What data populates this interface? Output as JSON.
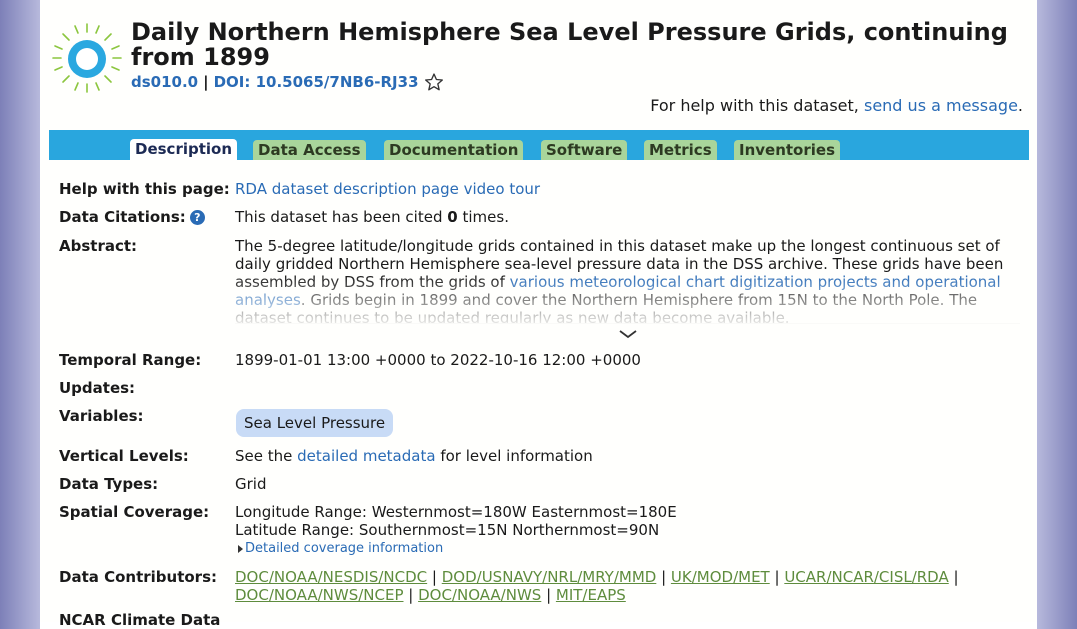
{
  "header": {
    "title": "Daily Northern Hemisphere Sea Level Pressure Grids, continuing from 1899",
    "dataset_id": "ds010.0",
    "separator": "|",
    "doi": "DOI: 10.5065/7NB6-RJ33",
    "help_prefix": "For help with this dataset,",
    "help_link": "send us a message",
    "help_suffix": "."
  },
  "tabs": [
    {
      "label": "Description",
      "active": true
    },
    {
      "label": "Data Access"
    },
    {
      "label": "Documentation"
    },
    {
      "label": "Software"
    },
    {
      "label": "Metrics"
    },
    {
      "label": "Inventories"
    }
  ],
  "details": {
    "help_page_label": "Help with this page:",
    "help_page_link": "RDA dataset description page video tour",
    "citations_label": "Data Citations:",
    "citations_prefix": "This dataset has been cited",
    "citations_count": "0",
    "citations_suffix": "times.",
    "abstract_label": "Abstract:",
    "abstract_part1": "The 5-degree latitude/longitude grids contained in this dataset make up the longest continuous set of daily gridded Northern Hemisphere sea-level pressure data in the DSS archive. These grids have been assembled by DSS from the grids of",
    "abstract_link": "various meteorological chart digitization projects and operational analyses",
    "abstract_part2": ". Grids begin in 1899 and cover the Northern Hemisphere from 15N to the North Pole. The dataset continues to be updated regularly as new data become available.",
    "temporal_label": "Temporal Range:",
    "temporal_value": "1899-01-01 13:00 +0000 to 2022-10-16 12:00 +0000",
    "updates_label": "Updates:",
    "variables_label": "Variables:",
    "variable_pill": "Sea Level Pressure",
    "vertical_label": "Vertical Levels:",
    "vertical_prefix": "See the",
    "vertical_link": "detailed metadata",
    "vertical_suffix": "for level information",
    "types_label": "Data Types:",
    "types_value": "Grid",
    "spatial_label": "Spatial Coverage:",
    "longitude": "Longitude Range: Westernmost=180W Easternmost=180E",
    "latitude": "Latitude Range: Southernmost=15N Northernmost=90N",
    "coverage_link": "Detailed coverage information",
    "contributors_label": "Data Contributors:",
    "contributors": [
      "DOC/NOAA/NESDIS/NCDC",
      "DOD/USNAVY/NRL/MRY/MMD",
      "UK/MOD/MET",
      "UCAR/NCAR/CISL/RDA",
      "DOC/NOAA/NWS/NCEP",
      "DOC/NOAA/NWS",
      "MIT/EAPS"
    ],
    "next_label": "NCAR Climate Data"
  },
  "colors": {
    "tab_bar": "#29a6de",
    "tab_bg": "#a9d59b",
    "link": "#2a6bb5",
    "contributor_link": "#5e8c3d",
    "pill": "#c8dbf6"
  }
}
